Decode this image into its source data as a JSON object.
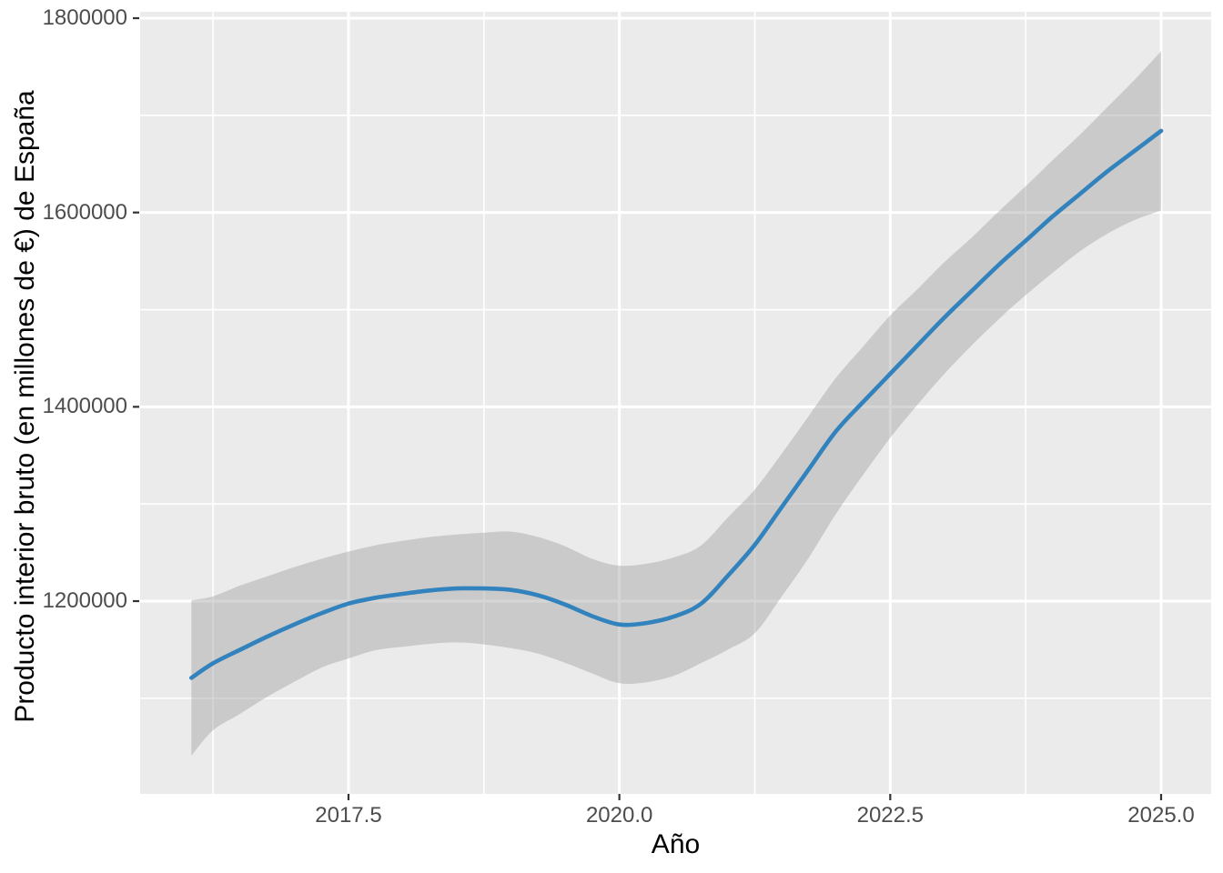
{
  "chart_data": {
    "type": "line",
    "title": "",
    "xlabel": "Año",
    "ylabel": "Producto interior bruto (en millones de €) de España",
    "grid": true,
    "legend": "none",
    "x_axis": {
      "ticks": [
        2017.5,
        2020.0,
        2022.5,
        2025.0
      ],
      "tick_labels": [
        "2017.5",
        "2020.0",
        "2022.5",
        "2025.0"
      ],
      "minor_ticks": [
        2016.25,
        2018.75,
        2021.25,
        2023.75
      ],
      "lim": [
        2015.577,
        2025.462
      ]
    },
    "y_axis": {
      "ticks": [
        1200000,
        1400000,
        1600000,
        1800000
      ],
      "tick_labels": [
        "1200000",
        "1400000",
        "1600000",
        "1800000"
      ],
      "minor_ticks": [
        1100000,
        1300000,
        1500000,
        1700000
      ],
      "lim": [
        1001600,
        1806550
      ]
    },
    "x": [
      2016.05,
      2016.25,
      2016.5,
      2016.75,
      2017.0,
      2017.25,
      2017.5,
      2017.75,
      2018.0,
      2018.25,
      2018.5,
      2018.75,
      2019.0,
      2019.25,
      2019.5,
      2019.75,
      2020.0,
      2020.25,
      2020.5,
      2020.75,
      2021.0,
      2021.25,
      2021.5,
      2021.75,
      2022.0,
      2022.25,
      2022.5,
      2022.75,
      2023.0,
      2023.25,
      2023.5,
      2023.75,
      2024.0,
      2024.25,
      2024.5,
      2024.75,
      2025.0
    ],
    "smooth_line": [
      1121000,
      1136000,
      1150000,
      1163500,
      1176000,
      1187500,
      1197500,
      1203500,
      1207500,
      1211000,
      1213000,
      1213000,
      1211500,
      1206000,
      1196500,
      1184500,
      1176000,
      1177500,
      1184000,
      1197000,
      1226000,
      1258000,
      1297000,
      1336000,
      1375000,
      1405000,
      1434000,
      1463000,
      1492000,
      1519000,
      1546000,
      1571000,
      1596000,
      1619000,
      1642000,
      1663000,
      1684000
    ],
    "band": {
      "upper": [
        1201000,
        1205000,
        1216000,
        1225500,
        1235000,
        1243500,
        1251000,
        1257500,
        1262000,
        1266000,
        1268500,
        1270500,
        1271500,
        1266000,
        1256500,
        1243500,
        1236500,
        1238500,
        1245000,
        1257000,
        1286000,
        1315000,
        1352000,
        1391000,
        1430000,
        1462000,
        1494000,
        1521000,
        1549000,
        1574000,
        1601000,
        1627000,
        1654000,
        1680000,
        1708000,
        1736000,
        1766000
      ],
      "lower": [
        1041000,
        1067000,
        1084000,
        1101500,
        1117000,
        1131500,
        1141000,
        1149500,
        1153000,
        1156000,
        1157500,
        1155500,
        1151500,
        1146000,
        1136500,
        1125500,
        1115500,
        1116500,
        1123000,
        1136000,
        1150000,
        1167000,
        1205000,
        1245000,
        1290000,
        1330000,
        1368000,
        1402000,
        1434000,
        1463000,
        1490000,
        1515000,
        1538000,
        1560000,
        1578000,
        1592000,
        1602000
      ]
    },
    "style": {
      "line_color": "#3182BD",
      "band_color": "rgba(153,153,153,0.40)",
      "panel_bg": "#EBEBEB",
      "grid_major_color": "#FFFFFF",
      "grid_minor_color": "#FFFFFF",
      "tick_label_color": "#4D4D4D",
      "axis_title_color": "#000000",
      "tick_mark_color": "#333333",
      "page_bg": "#FFFFFF"
    }
  }
}
